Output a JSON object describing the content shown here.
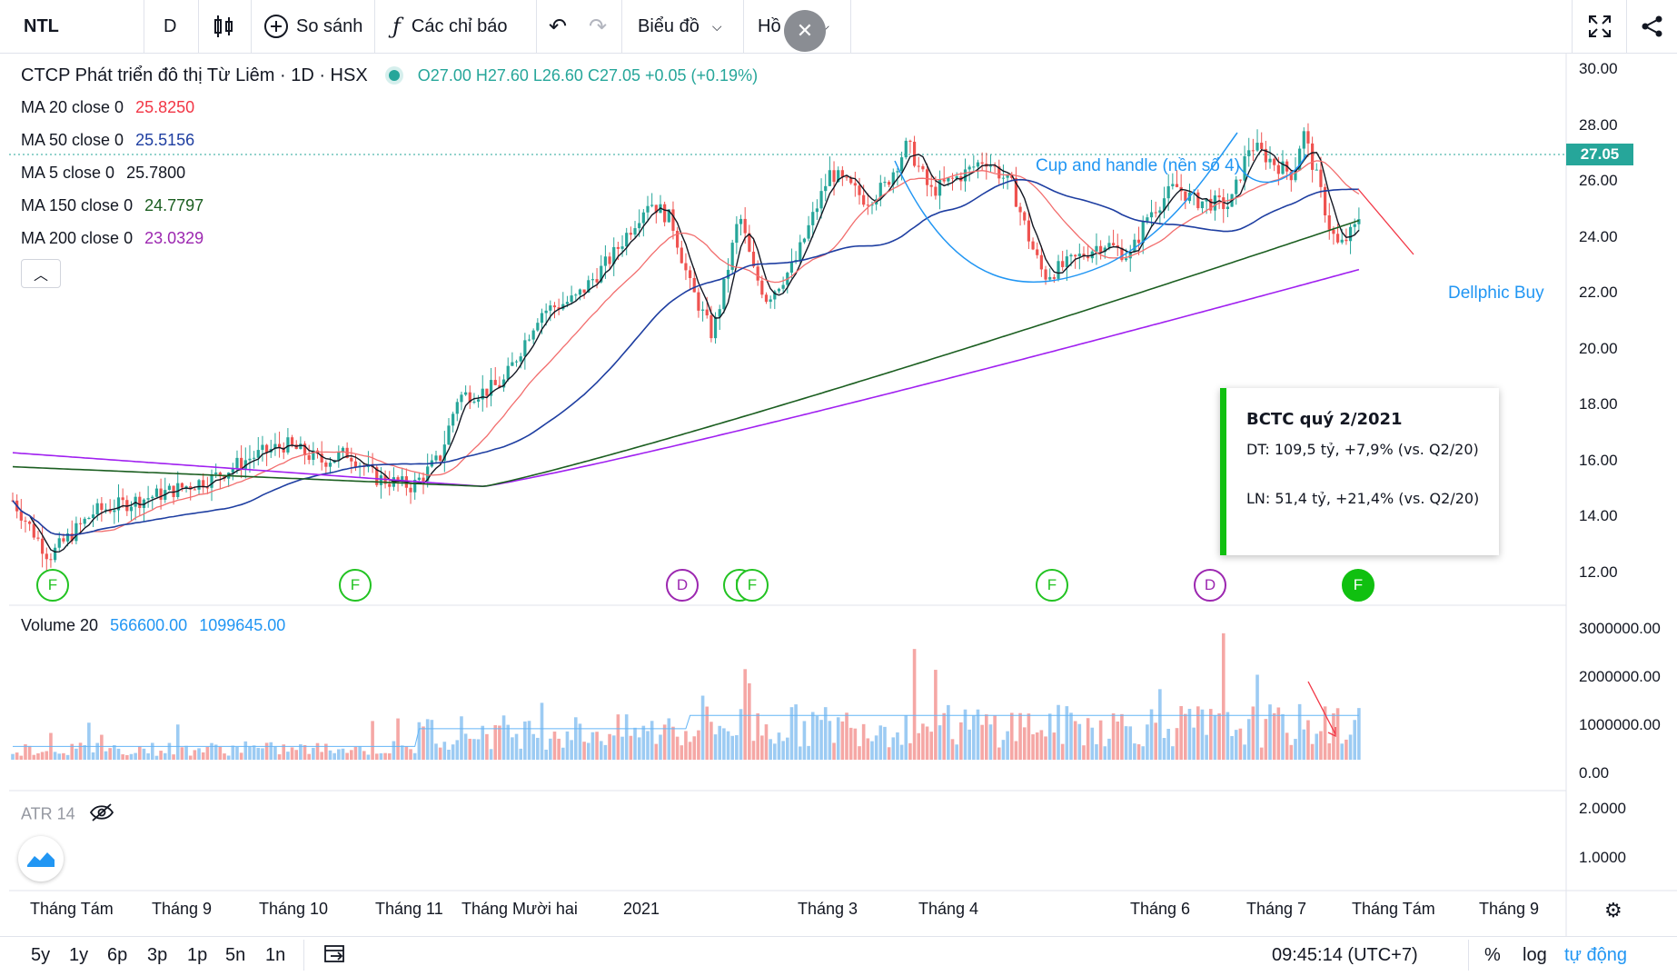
{
  "toolbar": {
    "symbol": "NTL",
    "interval": "D",
    "compare_label": "So sánh",
    "indicators_label": "Các chỉ báo",
    "chart_menu_label": "Biểu đồ",
    "profile_menu_label": "Hồ sơ"
  },
  "header": {
    "title": "CTCP Phát triển đô thị Từ Liêm · 1D · HSX",
    "ohlc": "O27.00  H27.60  L26.60  C27.05  +0.05 (+0.19%)"
  },
  "legend": [
    {
      "label": "MA 20 close 0",
      "value": "25.8250",
      "color": "#f23645"
    },
    {
      "label": "MA 50 close 0",
      "value": "25.5156",
      "color": "#1e3ea1"
    },
    {
      "label": "MA 5 close 0",
      "value": "25.7800",
      "color": "#131722"
    },
    {
      "label": "MA 150 close 0",
      "value": "24.7797",
      "color": "#1b5e20"
    },
    {
      "label": "MA 200 close 0",
      "value": "23.0329",
      "color": "#9c27b0"
    }
  ],
  "price_axis": [
    "30.00",
    "28.00",
    "26.00",
    "24.00",
    "22.00",
    "20.00",
    "18.00",
    "16.00",
    "14.00",
    "12.00"
  ],
  "last_price": "27.05",
  "annotations": {
    "pattern": "Cup and handle (nền số 4)",
    "signal": "Dellphic Buy"
  },
  "events": [
    {
      "type": "F",
      "label": "F"
    },
    {
      "type": "F",
      "label": "F"
    },
    {
      "type": "D",
      "label": "D"
    },
    {
      "type": "F",
      "label": "F"
    },
    {
      "type": "F",
      "label": "F"
    },
    {
      "type": "F",
      "label": "F"
    },
    {
      "type": "D",
      "label": "D"
    },
    {
      "type": "Ffill",
      "label": "F"
    }
  ],
  "tooltip": {
    "title": "BCTC quý 2/2021",
    "line1": "DT: 109,5 tỷ, +7,9% (vs. Q2/20)",
    "line2": "LN: 51,4 tỷ, +21,4% (vs. Q2/20)"
  },
  "volume": {
    "label": "Volume 20",
    "value": "566600.00",
    "ma_value": "1099645.00",
    "axis": [
      "3000000.00",
      "2000000.00",
      "1000000.00",
      "0.00"
    ]
  },
  "atr": {
    "label": "ATR 14",
    "axis": [
      "2.0000",
      "1.0000"
    ]
  },
  "time_axis": [
    "Tháng Tám",
    "Tháng 9",
    "Tháng 10",
    "Tháng 11",
    "Tháng Mười hai",
    "2021",
    "Tháng 3",
    "Tháng 4",
    "Tháng 6",
    "Tháng 7",
    "Tháng Tám",
    "Tháng 9"
  ],
  "bottom": {
    "ranges": [
      "5y",
      "1y",
      "6p",
      "3p",
      "1p",
      "5n",
      "1n"
    ],
    "clock": "09:45:14 (UTC+7)",
    "percent": "%",
    "log": "log",
    "auto": "tự động"
  },
  "chart_data": {
    "type": "candlestick",
    "series": [
      {
        "name": "MA 200 close 0",
        "y_start": 16.5,
        "y_end": 23.03
      },
      {
        "name": "MA 150 close 0",
        "y_start": 16.0,
        "y_end": 24.78
      },
      {
        "name": "MA 50 close 0",
        "y_end": 25.52
      },
      {
        "name": "MA 20 close 0",
        "y_end": 25.83
      },
      {
        "name": "MA 5 close 0",
        "y_end": 25.78
      }
    ],
    "price_range": [
      11,
      30.5
    ],
    "volume_range": [
      0,
      3000000
    ]
  }
}
